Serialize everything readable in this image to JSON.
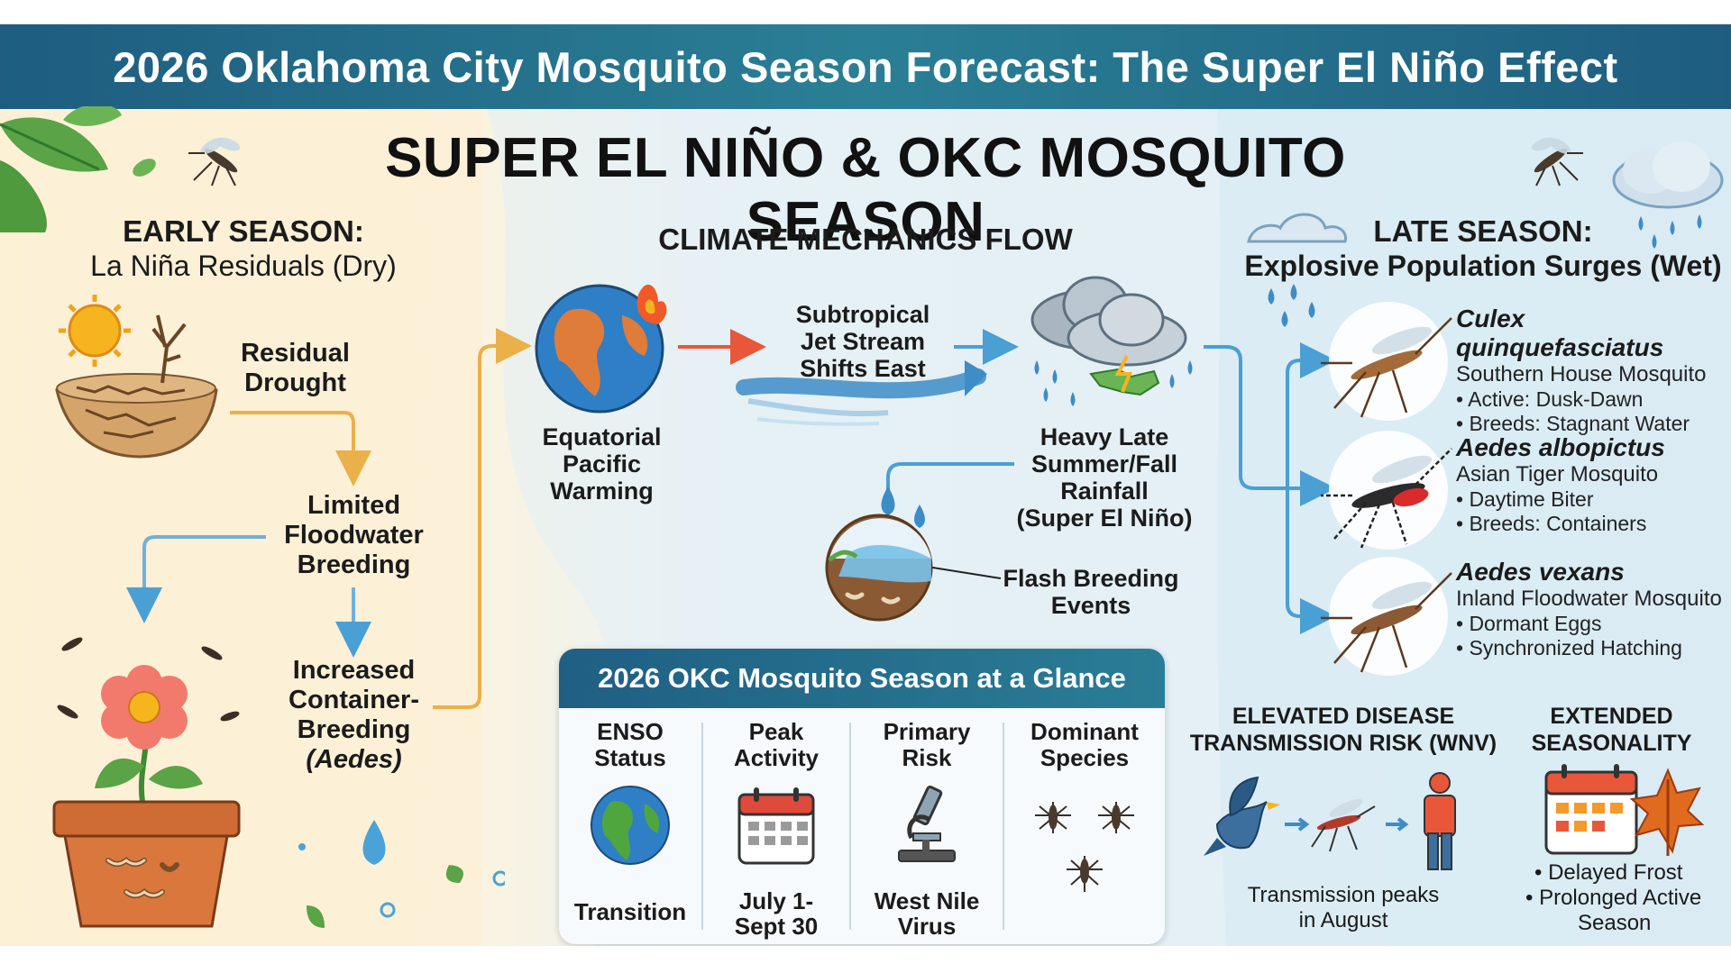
{
  "banner_title": "2026 Oklahoma City Mosquito Season Forecast: The Super El Niño Effect",
  "main_title": "SUPER EL NIÑO & OKC MOSQUITO SEASON",
  "early": {
    "heading": "EARLY SEASON:",
    "subheading": "La Niña Residuals (Dry)",
    "residual_drought": [
      "Residual",
      "Drought"
    ],
    "limited": [
      "Limited",
      "Floodwater",
      "Breeding"
    ],
    "increased": [
      "Increased",
      "Container-",
      "Breeding",
      "(Aedes)"
    ]
  },
  "mechanics": {
    "heading": "CLIMATE MECHANICS FLOW",
    "equatorial": [
      "Equatorial",
      "Pacific",
      "Warming"
    ],
    "jet": [
      "Subtropical",
      "Jet Stream",
      "Shifts East"
    ],
    "rainfall": [
      "Heavy Late",
      "Summer/Fall",
      "Rainfall",
      "(Super El Niño)"
    ],
    "flash": [
      "Flash Breeding",
      "Events"
    ]
  },
  "late": {
    "heading": "LATE SEASON:",
    "subheading": "Explosive Population Surges (Wet)"
  },
  "species": [
    {
      "name": "Culex quinquefasciatus",
      "common": "Southern House Mosquito",
      "bullets": [
        "• Active: Dusk-Dawn",
        "• Breeds: Stagnant Water"
      ]
    },
    {
      "name": "Aedes albopictus",
      "common": "Asian Tiger Mosquito",
      "bullets": [
        "• Daytime Biter",
        "• Breeds: Containers"
      ]
    },
    {
      "name": "Aedes vexans",
      "common": "Inland Floodwater Mosquito",
      "bullets": [
        "• Dormant Eggs",
        "• Synchronized Hatching"
      ]
    }
  ],
  "glance": {
    "title": "2026 OKC Mosquito Season at a Glance",
    "columns": [
      {
        "head": [
          "ENSO",
          "Status"
        ],
        "value": [
          "Transition"
        ]
      },
      {
        "head": [
          "Peak",
          "Activity"
        ],
        "value": [
          "July 1-",
          "Sept 30"
        ]
      },
      {
        "head": [
          "Primary",
          "Risk"
        ],
        "value": [
          "West Nile",
          "Virus"
        ]
      },
      {
        "head": [
          "Dominant",
          "Species"
        ],
        "value": []
      }
    ]
  },
  "disease": {
    "heading": [
      "ELEVATED DISEASE",
      "TRANSMISSION RISK (WNV)"
    ],
    "caption": [
      "Transmission peaks",
      "in August"
    ]
  },
  "extended": {
    "heading": [
      "EXTENDED",
      "SEASONALITY"
    ],
    "bullets": [
      "• Delayed Frost",
      "• Prolonged Active",
      "Season"
    ]
  },
  "colors": {
    "banner": "#1e5d80",
    "arrow_orange": "#eab04a",
    "arrow_blue": "#4a9fd4",
    "arrow_red": "#e8573a"
  }
}
